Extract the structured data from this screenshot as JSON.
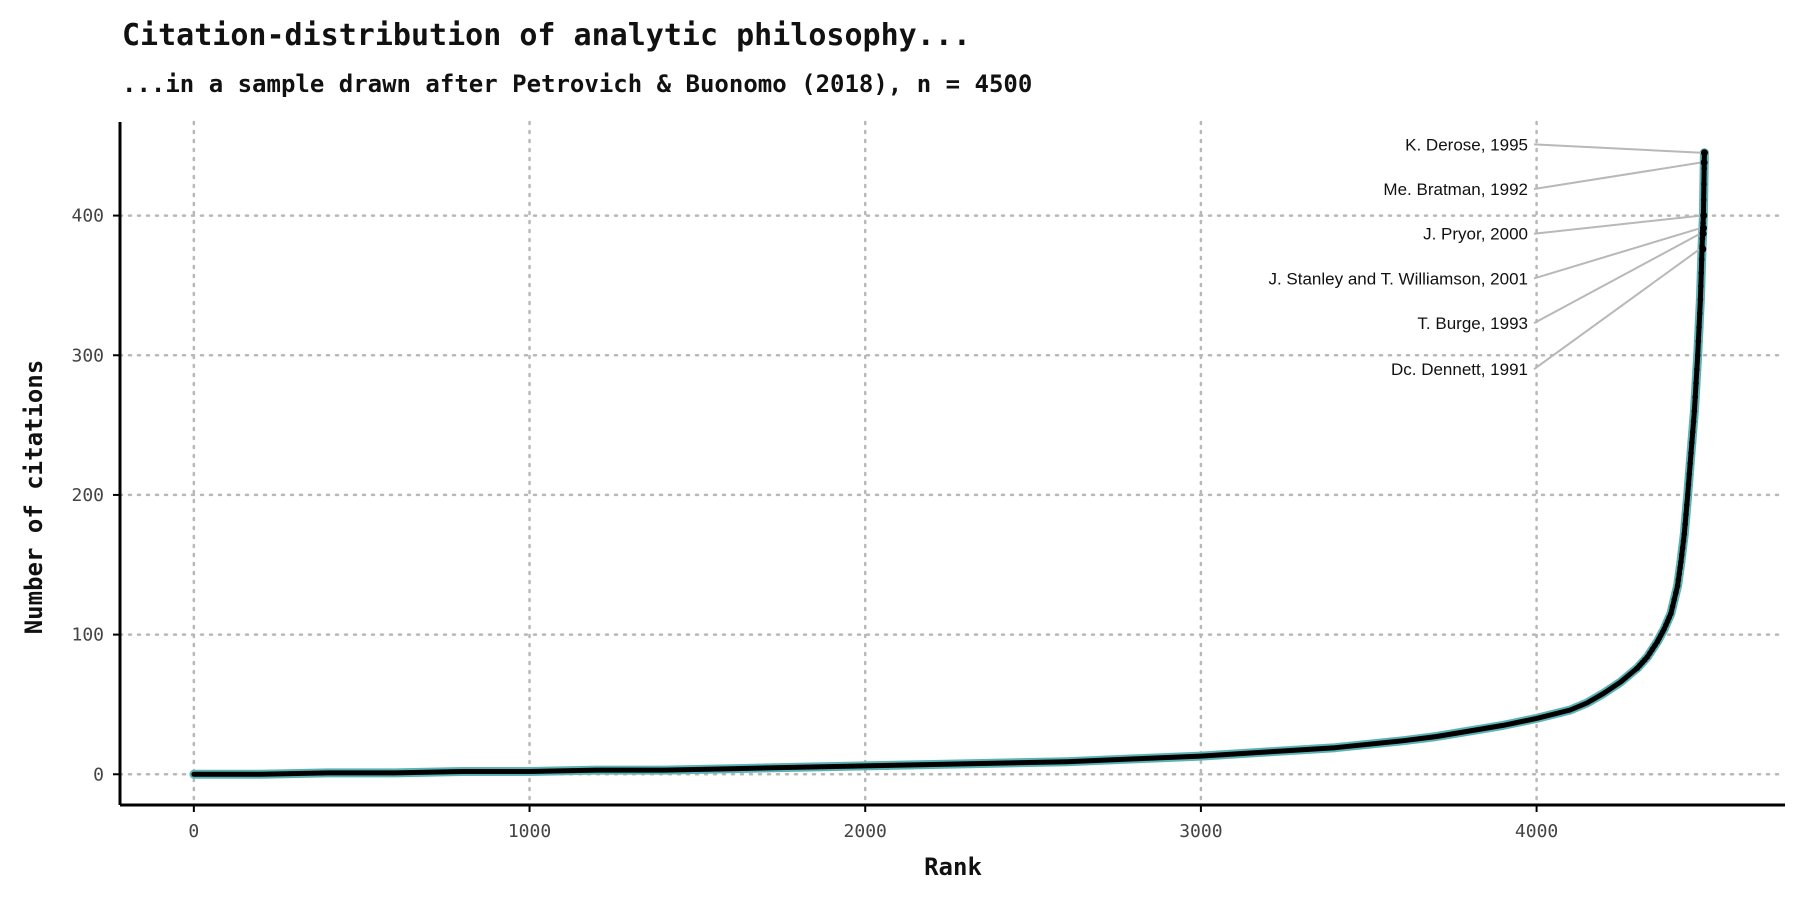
{
  "chart_data": {
    "type": "scatter",
    "title": "Citation-distribution of analytic philosophy...",
    "subtitle": "...in a sample drawn after Petrovich & Buonomo (2018), n = 4500",
    "xlabel": "Rank",
    "ylabel": "Number of citations",
    "xlim": [
      -220,
      4740
    ],
    "ylim": [
      -22,
      467
    ],
    "x_ticks": [
      0,
      1000,
      2000,
      3000,
      4000
    ],
    "y_ticks": [
      0,
      100,
      200,
      300,
      400
    ],
    "grid": "dotted major gridlines",
    "colors": {
      "line": "#5cb3b5",
      "points": "#000000",
      "leader": "#b8b8b8",
      "axis": "#000000"
    },
    "curve": {
      "description": "rank-ordered citation counts (sorted ascending)",
      "x": [
        0,
        200,
        400,
        600,
        800,
        1000,
        1200,
        1400,
        1600,
        1800,
        2000,
        2200,
        2400,
        2600,
        2800,
        3000,
        3200,
        3400,
        3600,
        3700,
        3800,
        3900,
        4000,
        4100,
        4150,
        4200,
        4250,
        4300,
        4330,
        4360,
        4380,
        4400,
        4420,
        4430,
        4440,
        4450,
        4460,
        4470,
        4480,
        4488,
        4493,
        4497,
        4500
      ],
      "y": [
        0,
        0,
        1,
        1,
        2,
        2,
        3,
        3,
        4,
        5,
        6,
        7,
        8,
        9,
        11,
        13,
        16,
        19,
        24,
        27,
        31,
        35,
        40,
        46,
        51,
        58,
        66,
        76,
        84,
        95,
        104,
        115,
        135,
        152,
        172,
        200,
        230,
        260,
        300,
        340,
        378,
        400,
        445
      ]
    },
    "annotations": [
      {
        "label": "K. Derose, 1995",
        "rank": 4500,
        "citations": 445,
        "label_y": 451
      },
      {
        "label": "Me. Bratman, 1992",
        "rank": 4499,
        "citations": 438,
        "label_y": 419
      },
      {
        "label": "J. Pryor, 2000",
        "rank": 4498,
        "citations": 400,
        "label_y": 387
      },
      {
        "label": "J. Stanley and  T. Williamson, 2001",
        "rank": 4497,
        "citations": 391,
        "label_y": 355
      },
      {
        "label": "T. Burge, 1993",
        "rank": 4496,
        "citations": 387,
        "label_y": 323
      },
      {
        "label": "Dc. Dennett, 1991",
        "rank": 4495,
        "citations": 376,
        "label_y": 290
      }
    ]
  }
}
